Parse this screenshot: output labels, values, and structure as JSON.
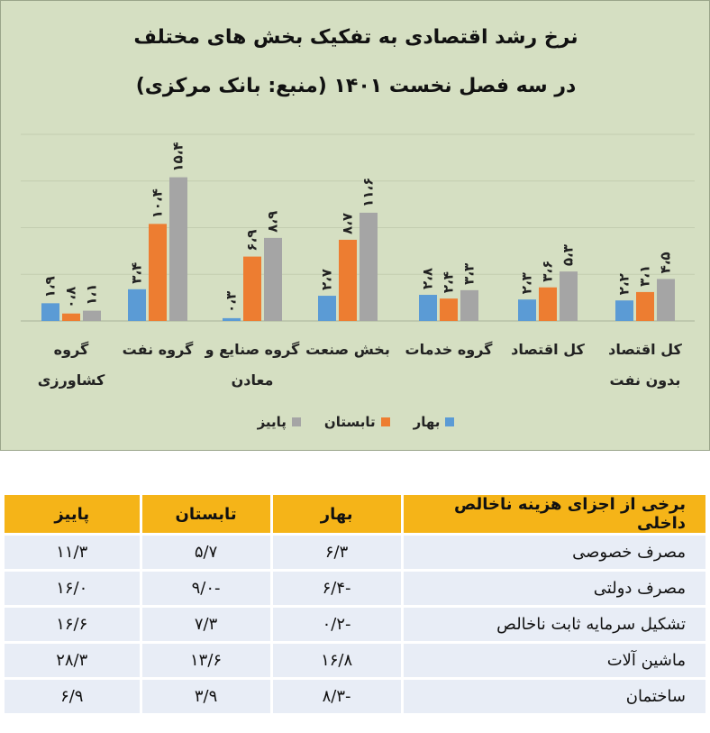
{
  "chart_data": {
    "type": "bar",
    "title": "نرخ رشد اقتصادی به تفکیک بخش های مختلف",
    "subtitle": "در سه فصل نخست ۱۴۰۱ (منبع: بانک مرکزی)",
    "categories": [
      [
        "کل اقتصاد",
        "بدون نفت"
      ],
      [
        "کل اقتصاد"
      ],
      [
        "گروه خدمات"
      ],
      [
        "بخش صنعت"
      ],
      [
        "گروه صنایع و",
        "معادن"
      ],
      [
        "گروه نفت"
      ],
      [
        "گروه",
        "کشاورزی"
      ]
    ],
    "series": [
      {
        "name": "بهار",
        "color": "#5b9bd5",
        "values": [
          2.2,
          2.3,
          2.8,
          2.7,
          0.3,
          3.4,
          1.9
        ],
        "labels": [
          "۲،۲",
          "۲،۳",
          "۲،۸",
          "۲،۷",
          "۰،۳",
          "۳،۴",
          "۱،۹"
        ]
      },
      {
        "name": "تابستان",
        "color": "#ed7d31",
        "values": [
          3.1,
          3.6,
          2.4,
          8.7,
          6.9,
          10.4,
          0.8
        ],
        "labels": [
          "۳،۱",
          "۳،۶",
          "۲،۴",
          "۸،۷",
          "۶،۹",
          "۱۰،۴",
          "۰،۸"
        ]
      },
      {
        "name": "پاییز",
        "color": "#a5a5a5",
        "values": [
          4.5,
          5.3,
          3.3,
          11.6,
          8.9,
          15.4,
          1.1
        ],
        "labels": [
          "۴،۵",
          "۵،۳",
          "۳،۳",
          "۱۱،۶",
          "۸،۹",
          "۱۵،۴",
          "۱،۱"
        ]
      }
    ],
    "ylim": [
      0,
      20
    ],
    "grid": true,
    "legend": "bottom-center"
  },
  "table": {
    "headers": [
      "برخی از اجزای هزینه ناخالص داخلی",
      "بهار",
      "تابستان",
      "پاییز"
    ],
    "rows": [
      [
        "مصرف خصوصی",
        "۶/۳",
        "۵/۷",
        "۱۱/۳"
      ],
      [
        "مصرف دولتی",
        "-۶/۴",
        "-۹/۰",
        "۱۶/۰"
      ],
      [
        "تشکیل سرمایه ثابت ناخالص",
        "-۰/۲",
        "۷/۳",
        "۱۶/۶"
      ],
      [
        "ماشین آلات",
        "۱۶/۸",
        "۱۳/۶",
        "۲۸/۳"
      ],
      [
        "ساختمان",
        "-۸/۳",
        "۳/۹",
        "۶/۹"
      ]
    ]
  }
}
